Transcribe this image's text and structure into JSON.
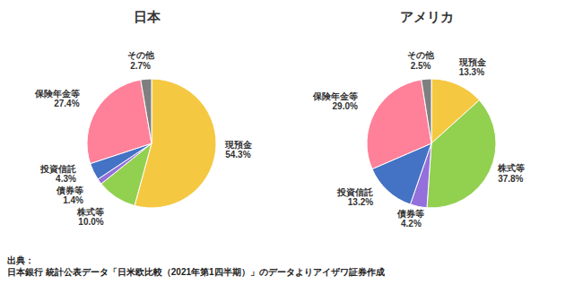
{
  "chart_data": [
    {
      "type": "pie",
      "title": "日本",
      "categories": [
        "現預金",
        "株式等",
        "債券等",
        "投資信託",
        "保険年金等",
        "その他"
      ],
      "values": [
        54.3,
        10.0,
        1.4,
        4.3,
        27.4,
        2.7
      ],
      "value_labels": [
        "54.3%",
        "10.0%",
        "1.4%",
        "4.3%",
        "27.4%",
        "2.7%"
      ],
      "colors": [
        "#F5C842",
        "#92D050",
        "#9370DB",
        "#4472C4",
        "#FF8099",
        "#7F7F7F"
      ],
      "data_labels": true,
      "annotations": [
        "出典：",
        "日本銀行 統計公表データ「日米欧比較（2021年第1四半期）」のデータよりアイザワ証券作成"
      ]
    },
    {
      "type": "pie",
      "title": "アメリカ",
      "categories": [
        "現預金",
        "株式等",
        "債券等",
        "投資信託",
        "保険年金等",
        "その他"
      ],
      "values": [
        13.3,
        37.8,
        4.2,
        13.2,
        29.0,
        2.5
      ],
      "value_labels": [
        "13.3%",
        "37.8%",
        "4.2%",
        "13.2%",
        "29.0%",
        "2.5%"
      ],
      "colors": [
        "#F5C842",
        "#92D050",
        "#9370DB",
        "#4472C4",
        "#FF8099",
        "#7F7F7F"
      ],
      "data_labels": true
    }
  ]
}
